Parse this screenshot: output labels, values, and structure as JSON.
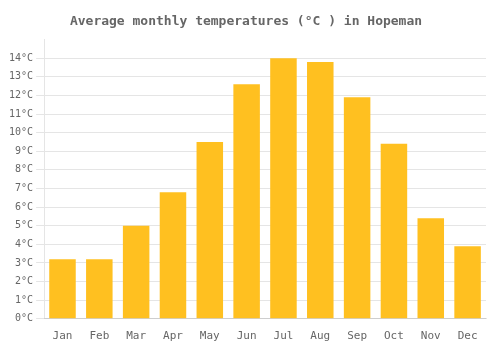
{
  "chart_data": {
    "type": "bar",
    "title": "Average monthly temperatures (°C ) in Hopeman",
    "categories": [
      "Jan",
      "Feb",
      "Mar",
      "Apr",
      "May",
      "Jun",
      "Jul",
      "Aug",
      "Sep",
      "Oct",
      "Nov",
      "Dec"
    ],
    "values": [
      3.2,
      3.2,
      5.0,
      6.8,
      9.5,
      12.6,
      14.0,
      13.8,
      11.9,
      9.4,
      5.4,
      3.9
    ],
    "color": "#FFC020",
    "ylim": [
      0,
      15
    ],
    "yticks": [
      {
        "value": 0,
        "label": "0°C"
      },
      {
        "value": 1,
        "label": "1°C"
      },
      {
        "value": 2,
        "label": "2°C"
      },
      {
        "value": 3,
        "label": "3°C"
      },
      {
        "value": 4,
        "label": "4°C"
      },
      {
        "value": 5,
        "label": "5°C"
      },
      {
        "value": 6,
        "label": "6°C"
      },
      {
        "value": 7,
        "label": "7°C"
      },
      {
        "value": 8,
        "label": "8°C"
      },
      {
        "value": 9,
        "label": "9°C"
      },
      {
        "value": 10,
        "label": "10°C"
      },
      {
        "value": 11,
        "label": "11°C"
      },
      {
        "value": 12,
        "label": "12°C"
      },
      {
        "value": 13,
        "label": "13°C"
      },
      {
        "value": 14,
        "label": "14°C"
      }
    ],
    "grid": true
  }
}
